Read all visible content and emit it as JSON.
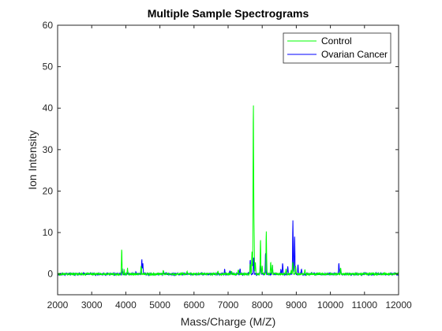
{
  "chart_data": {
    "type": "line",
    "title": "Multiple Sample Spectrograms",
    "xlabel": "Mass/Charge (M/Z)",
    "ylabel": "Ion Intensity",
    "xlim": [
      2000,
      12000
    ],
    "ylim": [
      -5,
      60
    ],
    "x_ticks": [
      2000,
      3000,
      4000,
      5000,
      6000,
      7000,
      8000,
      9000,
      10000,
      11000,
      12000
    ],
    "y_ticks": [
      0,
      10,
      20,
      30,
      40,
      50,
      60
    ],
    "grid": false,
    "legend_position": "top-right",
    "series": [
      {
        "name": "Ovarian Cancer",
        "color": "#0000ff",
        "peaks": [
          [
            3900,
            1.2
          ],
          [
            4470,
            3.5
          ],
          [
            4500,
            2.4
          ],
          [
            4300,
            0.6
          ],
          [
            5100,
            0.6
          ],
          [
            6900,
            1.2
          ],
          [
            7050,
            0.9
          ],
          [
            7350,
            1.4
          ],
          [
            7650,
            3.5
          ],
          [
            7750,
            4.0
          ],
          [
            7950,
            1.8
          ],
          [
            8100,
            5.0
          ],
          [
            8300,
            2.0
          ],
          [
            8550,
            1.2
          ],
          [
            8600,
            2.8
          ],
          [
            8750,
            1.8
          ],
          [
            8900,
            12.8
          ],
          [
            8950,
            9.5
          ],
          [
            9050,
            2.2
          ],
          [
            9150,
            1.4
          ],
          [
            10250,
            2.6
          ],
          [
            10300,
            1.2
          ]
        ]
      },
      {
        "name": "Control",
        "color": "#00ff00",
        "peaks": [
          [
            3880,
            5.9
          ],
          [
            3950,
            1.0
          ],
          [
            4050,
            1.4
          ],
          [
            4450,
            2.0
          ],
          [
            5100,
            0.8
          ],
          [
            5800,
            0.5
          ],
          [
            6700,
            0.6
          ],
          [
            7100,
            0.8
          ],
          [
            7300,
            1.0
          ],
          [
            7650,
            2.5
          ],
          [
            7700,
            5.5
          ],
          [
            7740,
            40.5
          ],
          [
            7760,
            11.0
          ],
          [
            7800,
            3.0
          ],
          [
            7950,
            8.5
          ],
          [
            8000,
            2.0
          ],
          [
            8120,
            10.5
          ],
          [
            8250,
            3.0
          ],
          [
            8300,
            2.0
          ],
          [
            8700,
            1.5
          ],
          [
            8850,
            1.0
          ],
          [
            8900,
            3.0
          ],
          [
            8980,
            2.0
          ],
          [
            9250,
            1.0
          ],
          [
            10300,
            1.5
          ]
        ]
      }
    ]
  }
}
